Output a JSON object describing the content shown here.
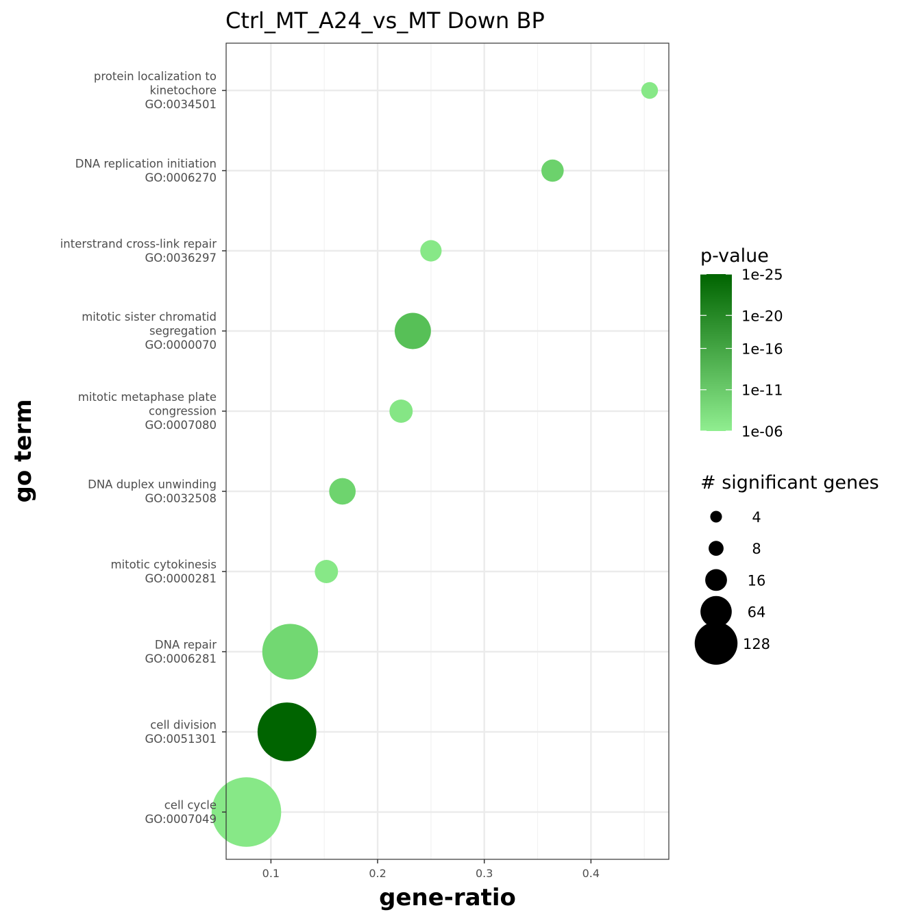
{
  "chart_data": {
    "type": "scatter",
    "title": "Ctrl_MT_A24_vs_MT Down BP",
    "xlabel": "gene-ratio",
    "ylabel": "go term",
    "xlim": [
      0.058,
      0.473
    ],
    "xticks": [
      0.1,
      0.2,
      0.3,
      0.4
    ],
    "xtick_labels": [
      "0.1",
      "0.2",
      "0.3",
      "0.4"
    ],
    "grid": true,
    "terms": [
      {
        "name": "protein localization to\nkinetochore",
        "id": "GO:0034501",
        "x": 0.455,
        "size": 4,
        "pvalue_exp": -6.8,
        "color": "#87e887"
      },
      {
        "name": "DNA replication initiation",
        "id": "GO:0006270",
        "x": 0.364,
        "size": 9,
        "pvalue_exp": -10.5,
        "color": "#6cd26c"
      },
      {
        "name": "interstrand cross-link repair",
        "id": "GO:0036297",
        "x": 0.25,
        "size": 8,
        "pvalue_exp": -7.0,
        "color": "#87e887"
      },
      {
        "name": "mitotic sister chromatid\nsegregation",
        "id": "GO:0000070",
        "x": 0.233,
        "size": 30,
        "pvalue_exp": -13.0,
        "color": "#57c057"
      },
      {
        "name": "mitotic metaphase plate\ncongression",
        "id": "GO:0007080",
        "x": 0.222,
        "size": 10,
        "pvalue_exp": -7.5,
        "color": "#85e685"
      },
      {
        "name": "DNA duplex unwinding",
        "id": "GO:0032508",
        "x": 0.167,
        "size": 14,
        "pvalue_exp": -10.0,
        "color": "#6ed46e"
      },
      {
        "name": "mitotic cytokinesis",
        "id": "GO:0000281",
        "x": 0.152,
        "size": 10,
        "pvalue_exp": -7.0,
        "color": "#87e887"
      },
      {
        "name": "DNA repair",
        "id": "GO:0006281",
        "x": 0.118,
        "size": 80,
        "pvalue_exp": -9.5,
        "color": "#72d872"
      },
      {
        "name": "cell division",
        "id": "GO:0051301",
        "x": 0.115,
        "size": 90,
        "pvalue_exp": -25.0,
        "color": "#006400"
      },
      {
        "name": "cell cycle",
        "id": "GO:0007049",
        "x": 0.077,
        "size": 130,
        "pvalue_exp": -7.0,
        "color": "#87e887"
      }
    ],
    "legend_color": {
      "title": "p-value",
      "placement": "right",
      "low_color": "#90ee90",
      "high_color": "#006400",
      "labels": [
        "1e-25",
        "1e-20",
        "1e-16",
        "1e-11",
        "1e-06"
      ],
      "exponents": [
        -25,
        -20,
        -16,
        -11,
        -6
      ]
    },
    "legend_size": {
      "title": "# significant  genes",
      "placement": "right",
      "entries": [
        4,
        8,
        16,
        64,
        128
      ],
      "labels": [
        "4",
        "8",
        "16",
        "64",
        "128"
      ]
    }
  }
}
